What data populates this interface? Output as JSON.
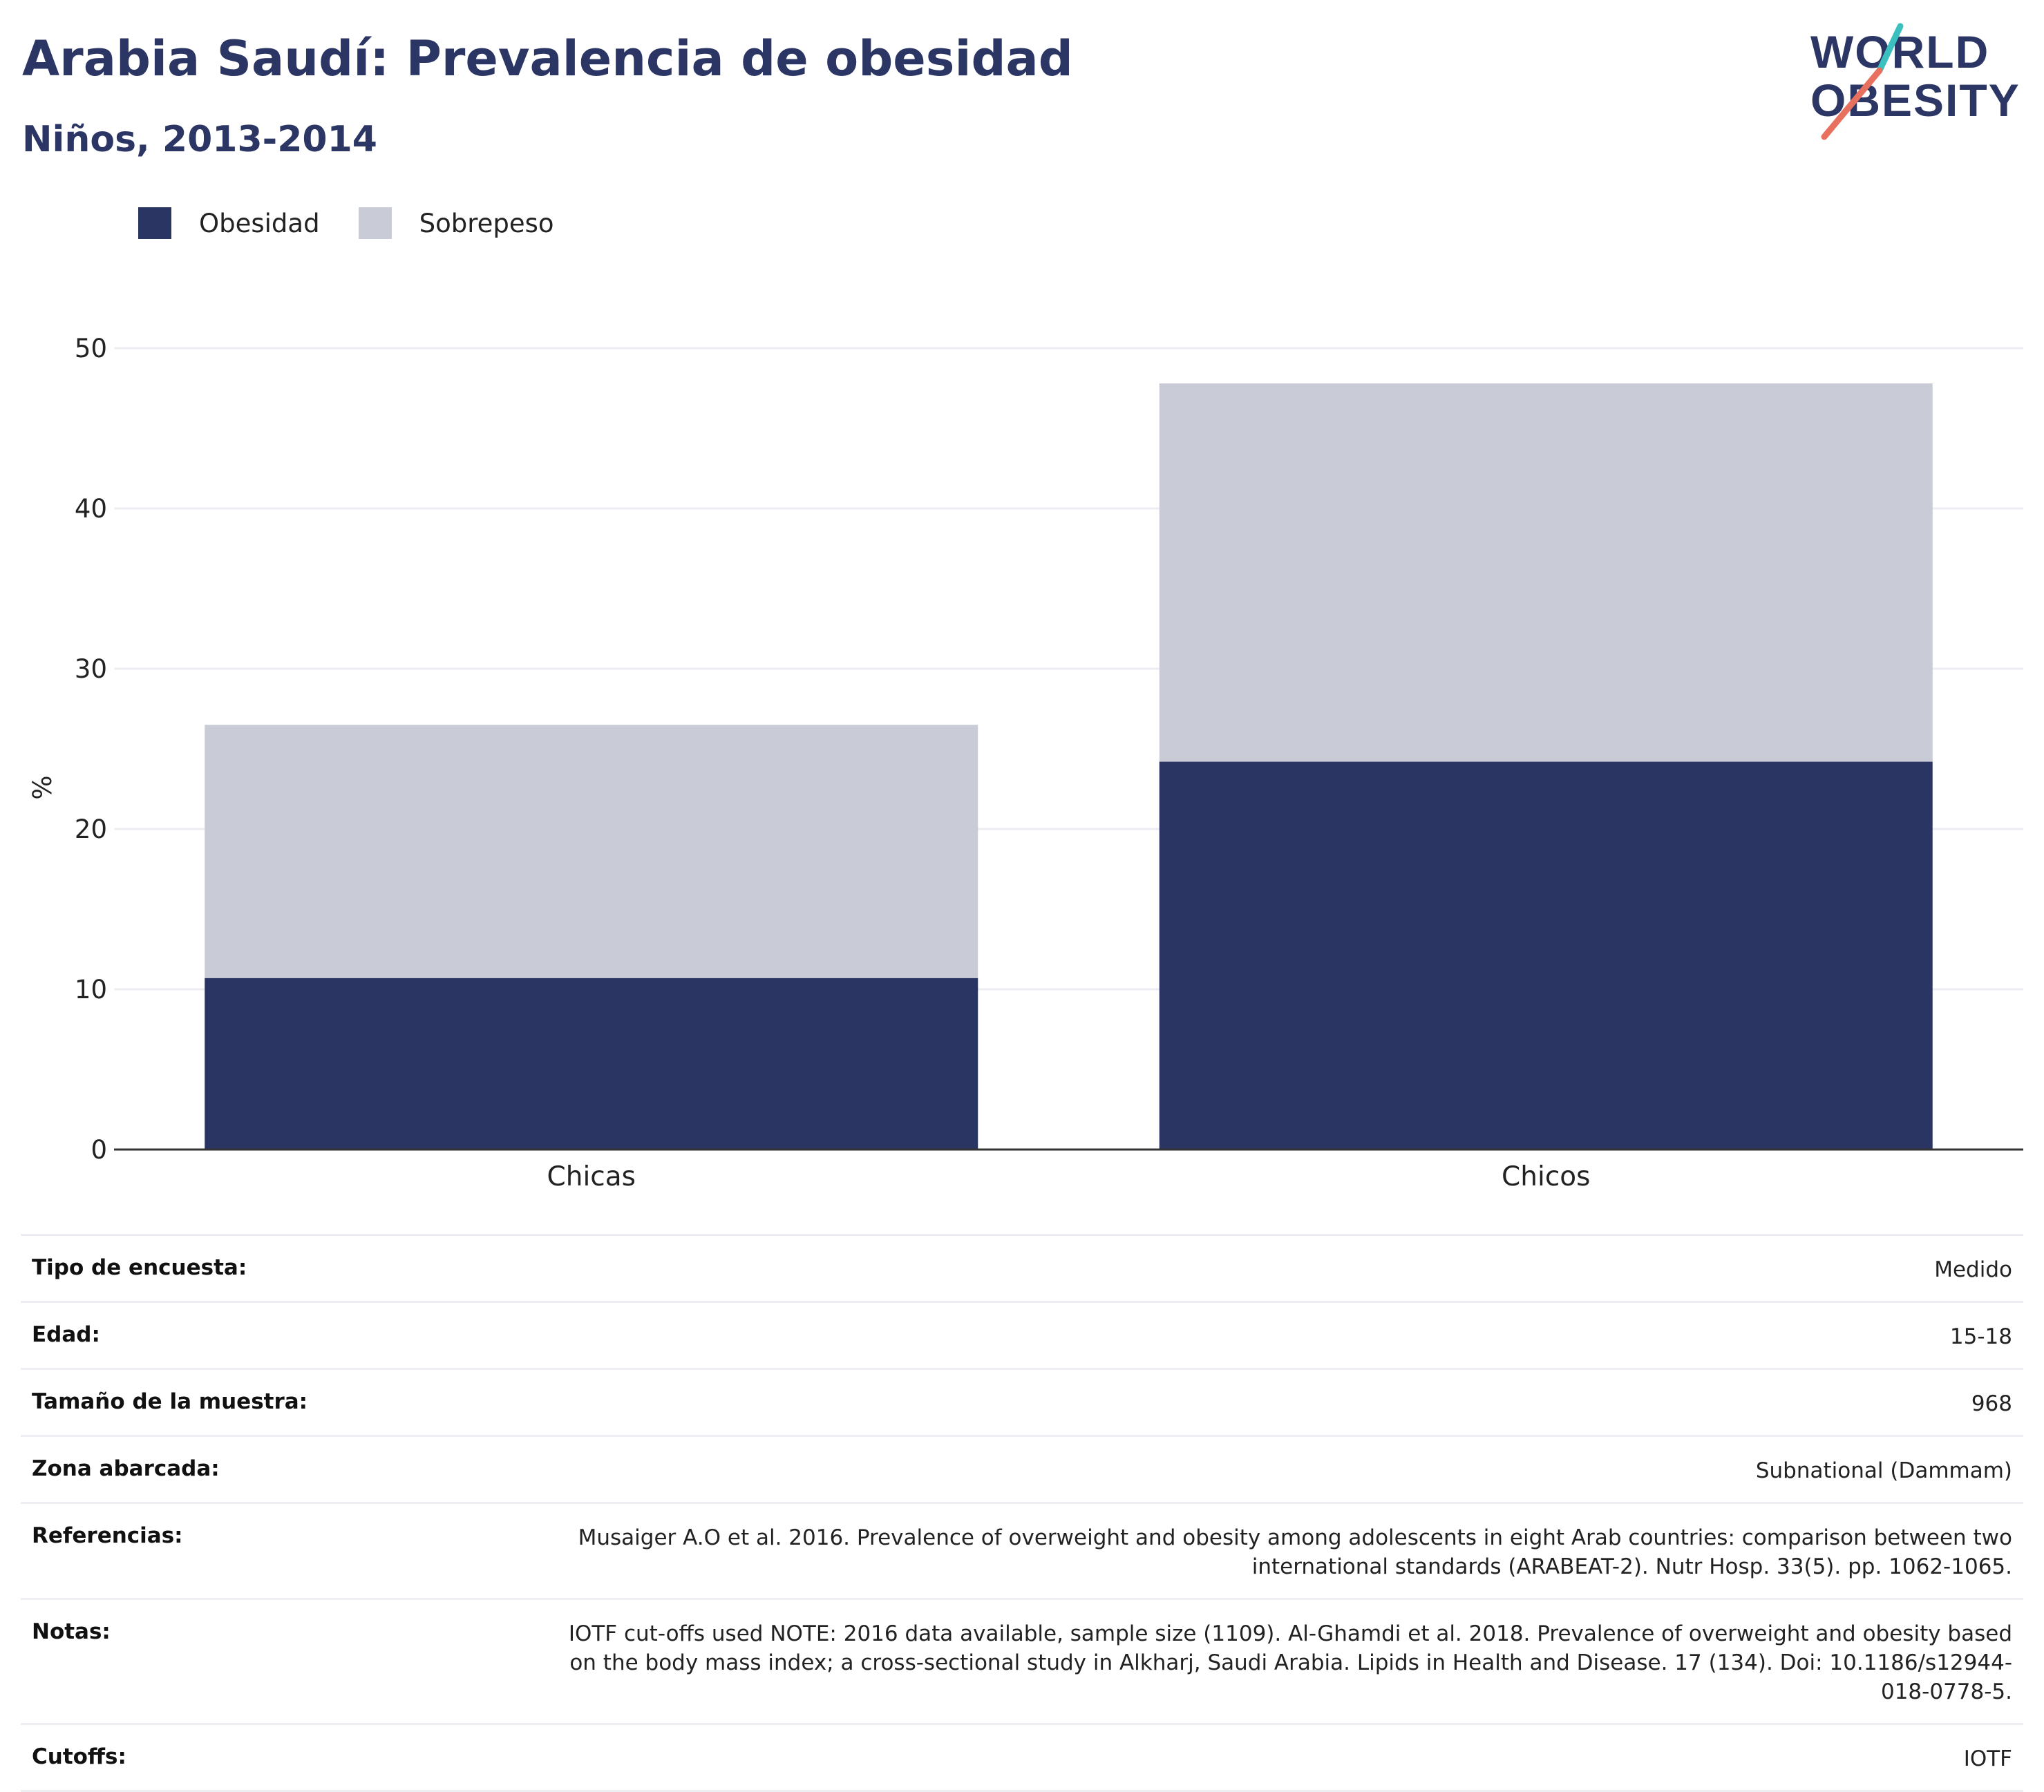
{
  "header": {
    "title": "Arabia Saudí: Prevalencia de obesidad",
    "subtitle": "Niños, 2013-2014"
  },
  "logo": {
    "line1": "WORLD",
    "line2": "OBESITY",
    "colors": {
      "text": "#2b3664",
      "slash_top": "#3bbfbf",
      "slash_bottom": "#e8705f"
    }
  },
  "colors": {
    "obesity": "#2a3563",
    "overweight": "#c9cbd7",
    "grid": "#eceef4",
    "axis": "#333333"
  },
  "chart_data": {
    "type": "bar",
    "stacked": true,
    "categories": [
      "Chicas",
      "Chicos"
    ],
    "series": [
      {
        "name": "Obesidad",
        "values": [
          10.7,
          24.2
        ]
      },
      {
        "name": "Sobrepeso",
        "values": [
          15.8,
          23.6
        ]
      }
    ],
    "ylabel": "%",
    "ylim": [
      0,
      50
    ],
    "yticks": [
      0,
      10,
      20,
      30,
      40,
      50
    ],
    "grid": true,
    "legend_position": "top-left"
  },
  "info_rows": [
    {
      "label": "Tipo de encuesta:",
      "value": "Medido"
    },
    {
      "label": "Edad:",
      "value": "15-18"
    },
    {
      "label": "Tamaño de la muestra:",
      "value": "968"
    },
    {
      "label": "Zona abarcada:",
      "value": "Subnational (Dammam)"
    },
    {
      "label": "Referencias:",
      "value": "Musaiger A.O et al. 2016. Prevalence of overweight and obesity among adolescents in eight Arab countries: comparison between two international standards (ARABEAT-2). Nutr Hosp. 33(5). pp. 1062-1065."
    },
    {
      "label": "Notas:",
      "value": "IOTF cut-offs used NOTE: 2016 data available, sample size (1109). Al-Ghamdi et al. 2018. Prevalence of overweight and obesity based on the body mass index; a cross-sectional study in Alkharj, Saudi Arabia. Lipids in Health and Disease. 17 (134). Doi: 10.1186/s12944-018-0778-5."
    },
    {
      "label": "Cutoffs:",
      "value": "IOTF"
    }
  ]
}
